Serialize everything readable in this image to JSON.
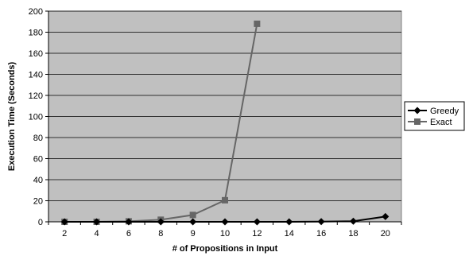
{
  "chart_data": {
    "type": "line",
    "title": "",
    "xlabel": "# of Propositions in Input",
    "ylabel": "Execution Time (Seconds)",
    "categories": [
      "2",
      "4",
      "6",
      "8",
      "9",
      "10",
      "12",
      "14",
      "16",
      "18",
      "20"
    ],
    "ylim": [
      0,
      200
    ],
    "yticks": [
      "0",
      "20",
      "40",
      "60",
      "80",
      "100",
      "120",
      "140",
      "160",
      "180",
      "200"
    ],
    "grid": "horizontal",
    "legend_position": "right",
    "series": [
      {
        "name": "Greedy",
        "marker": "diamond",
        "color": "#000000",
        "values": [
          0,
          0,
          0,
          0,
          0,
          0,
          0,
          0,
          0.2,
          0.6,
          5
        ]
      },
      {
        "name": "Exact",
        "marker": "square",
        "color": "#666666",
        "values": [
          0,
          0,
          0.5,
          2,
          6.5,
          20.5,
          188,
          null,
          null,
          null,
          null
        ]
      }
    ],
    "colors": {
      "plot_background": "#c0c0c0",
      "gridline": "#000000"
    }
  }
}
